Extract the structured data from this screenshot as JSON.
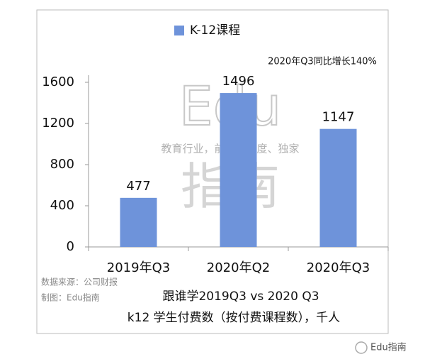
{
  "chart_data": {
    "type": "bar",
    "categories": [
      "2019年Q3",
      "2020年Q2",
      "2020年Q3"
    ],
    "series": [
      {
        "name": "K-12课程",
        "color": "#6e93da",
        "values": [
          477,
          1496,
          1147
        ]
      }
    ],
    "ylim": [
      0,
      1600
    ],
    "yticks": [
      0,
      400,
      800,
      1200,
      1600
    ],
    "grid": false,
    "legend": "top",
    "annotation": "2020年Q3同比增长140%",
    "subtitle": [
      "跟谁学2019Q3 vs 2020 Q3",
      "k12 学生付费数（按付费课程数），千人"
    ],
    "source": [
      "数据来源：公司财报",
      "制图：Edu指南"
    ]
  },
  "watermark": {
    "brand": "Edu",
    "name": "指南",
    "slogan": "教育行业，前沿、深度、独家"
  },
  "footer": {
    "account": "Edu指南"
  }
}
